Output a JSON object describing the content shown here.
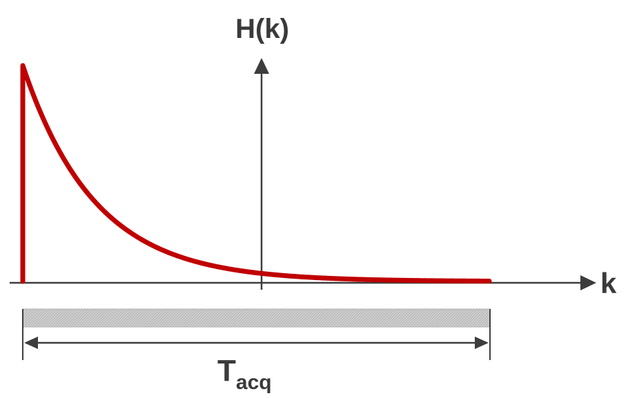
{
  "diagram": {
    "y_axis_label": "H(k)",
    "x_axis_label": "k",
    "interval_label_main": "T",
    "interval_label_sub": "acq"
  },
  "colors": {
    "axis": "#3d3d3d",
    "curve": "#c00000",
    "bar_fill": "#cccccc",
    "bar_stroke": "#a9a9a9",
    "text": "#3a3a3a"
  }
}
